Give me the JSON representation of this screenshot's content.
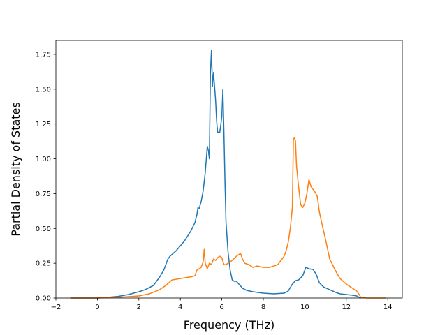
{
  "chart_data": {
    "type": "line",
    "title": "",
    "xlabel": "Frequency (THz)",
    "ylabel": "Partial Density of States",
    "xlim": [
      -2.0,
      14.7
    ],
    "ylim": [
      0.0,
      1.85
    ],
    "xticks": [
      -2,
      0,
      2,
      4,
      6,
      8,
      10,
      12,
      14
    ],
    "xtick_labels": [
      "−2",
      "0",
      "2",
      "4",
      "6",
      "8",
      "10",
      "12",
      "14"
    ],
    "yticks": [
      0.0,
      0.25,
      0.5,
      0.75,
      1.0,
      1.25,
      1.5,
      1.75
    ],
    "ytick_labels": [
      "0.00",
      "0.25",
      "0.50",
      "0.75",
      "1.00",
      "1.25",
      "1.50",
      "1.75"
    ],
    "grid": false,
    "legend": "none",
    "series": [
      {
        "color": "#1f77b4",
        "x": [
          -1.3,
          0.0,
          0.5,
          1.0,
          1.5,
          2.0,
          2.3,
          2.7,
          3.0,
          3.2,
          3.4,
          3.5,
          3.8,
          4.2,
          4.5,
          4.7,
          4.8,
          4.85,
          4.9,
          5.0,
          5.1,
          5.2,
          5.3,
          5.35,
          5.4,
          5.45,
          5.5,
          5.55,
          5.6,
          5.65,
          5.7,
          5.75,
          5.8,
          5.9,
          6.0,
          6.05,
          6.1,
          6.15,
          6.2,
          6.3,
          6.4,
          6.5,
          6.6,
          6.7,
          7.0,
          7.2,
          7.5,
          8.0,
          8.5,
          9.0,
          9.2,
          9.4,
          9.55,
          9.7,
          9.9,
          10.05,
          10.2,
          10.4,
          10.55,
          10.7,
          10.9,
          11.2,
          11.5,
          11.7,
          12.0,
          12.3,
          12.5,
          12.6,
          12.7
        ],
        "y": [
          0.0,
          0.0,
          0.005,
          0.012,
          0.025,
          0.045,
          0.06,
          0.09,
          0.15,
          0.2,
          0.28,
          0.3,
          0.34,
          0.41,
          0.48,
          0.54,
          0.6,
          0.65,
          0.64,
          0.69,
          0.77,
          0.9,
          1.09,
          1.06,
          1.0,
          1.62,
          1.78,
          1.52,
          1.62,
          1.52,
          1.42,
          1.27,
          1.19,
          1.19,
          1.3,
          1.5,
          1.2,
          0.85,
          0.55,
          0.33,
          0.2,
          0.13,
          0.12,
          0.12,
          0.07,
          0.055,
          0.045,
          0.035,
          0.03,
          0.035,
          0.05,
          0.1,
          0.125,
          0.13,
          0.16,
          0.22,
          0.21,
          0.205,
          0.17,
          0.11,
          0.08,
          0.06,
          0.04,
          0.03,
          0.025,
          0.02,
          0.015,
          0.007,
          0.0
        ]
      },
      {
        "color": "#ff7f0e",
        "x": [
          -1.3,
          0.0,
          1.0,
          2.0,
          2.5,
          3.0,
          3.3,
          3.45,
          3.6,
          4.0,
          4.4,
          4.6,
          4.7,
          4.8,
          4.9,
          5.0,
          5.1,
          5.15,
          5.2,
          5.3,
          5.4,
          5.5,
          5.6,
          5.7,
          5.8,
          5.9,
          6.0,
          6.1,
          6.2,
          6.3,
          6.5,
          6.7,
          6.9,
          7.0,
          7.1,
          7.3,
          7.5,
          7.7,
          8.0,
          8.3,
          8.5,
          8.7,
          8.9,
          9.0,
          9.1,
          9.2,
          9.3,
          9.4,
          9.45,
          9.5,
          9.55,
          9.6,
          9.7,
          9.8,
          9.9,
          10.0,
          10.1,
          10.2,
          10.3,
          10.5,
          10.6,
          10.7,
          10.8,
          11.0,
          11.2,
          11.5,
          11.7,
          12.0,
          12.3,
          12.5,
          12.6,
          12.7,
          13.0,
          13.9
        ],
        "y": [
          0.0,
          0.0,
          0.005,
          0.015,
          0.03,
          0.06,
          0.09,
          0.11,
          0.13,
          0.14,
          0.15,
          0.155,
          0.16,
          0.2,
          0.21,
          0.22,
          0.26,
          0.35,
          0.25,
          0.21,
          0.25,
          0.24,
          0.28,
          0.27,
          0.29,
          0.3,
          0.29,
          0.24,
          0.24,
          0.25,
          0.27,
          0.3,
          0.32,
          0.28,
          0.25,
          0.24,
          0.22,
          0.23,
          0.22,
          0.22,
          0.23,
          0.24,
          0.28,
          0.3,
          0.34,
          0.4,
          0.5,
          0.65,
          1.14,
          1.15,
          1.13,
          0.95,
          0.8,
          0.67,
          0.65,
          0.68,
          0.75,
          0.85,
          0.8,
          0.76,
          0.73,
          0.62,
          0.55,
          0.42,
          0.28,
          0.19,
          0.14,
          0.1,
          0.07,
          0.05,
          0.03,
          0.005,
          0.0,
          0.0
        ]
      }
    ]
  }
}
